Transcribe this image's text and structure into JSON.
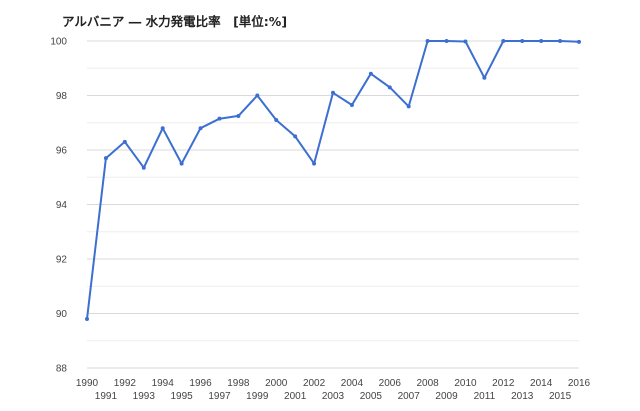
{
  "chart_data": {
    "type": "line",
    "title": "アルバニア ― 水力発電比率　[単位:%]",
    "xlabel": "",
    "ylabel": "",
    "x": [
      1990,
      1991,
      1992,
      1993,
      1994,
      1995,
      1996,
      1997,
      1998,
      1999,
      2000,
      2001,
      2002,
      2003,
      2004,
      2005,
      2006,
      2007,
      2008,
      2009,
      2010,
      2011,
      2012,
      2013,
      2014,
      2015,
      2016
    ],
    "series": [
      {
        "values": [
          89.8,
          95.7,
          96.3,
          95.35,
          96.8,
          95.5,
          96.8,
          97.15,
          97.25,
          98.0,
          97.1,
          96.5,
          95.5,
          98.1,
          97.65,
          98.8,
          98.3,
          97.6,
          100.0,
          100.0,
          99.98,
          98.65,
          100.0,
          100.0,
          100.0,
          100.0,
          99.97
        ]
      }
    ],
    "ylim": [
      88,
      100
    ],
    "yticks": [
      88,
      90,
      92,
      94,
      96,
      98,
      100
    ],
    "xticks_row1": [
      "1990",
      "1992",
      "1994",
      "1996",
      "1998",
      "2000",
      "2002",
      "2004",
      "2006",
      "2008",
      "2010",
      "2012",
      "2014",
      "2016"
    ],
    "xticks_row2": [
      "1991",
      "1993",
      "1995",
      "1997",
      "1999",
      "2001",
      "2003",
      "2005",
      "2007",
      "2009",
      "2011",
      "2013",
      "2015"
    ],
    "grid": true,
    "legend": "none",
    "line_color": "#3c6fd0",
    "grid_color": "#d9d9d9",
    "minor_grid_color": "#eeeeee"
  }
}
